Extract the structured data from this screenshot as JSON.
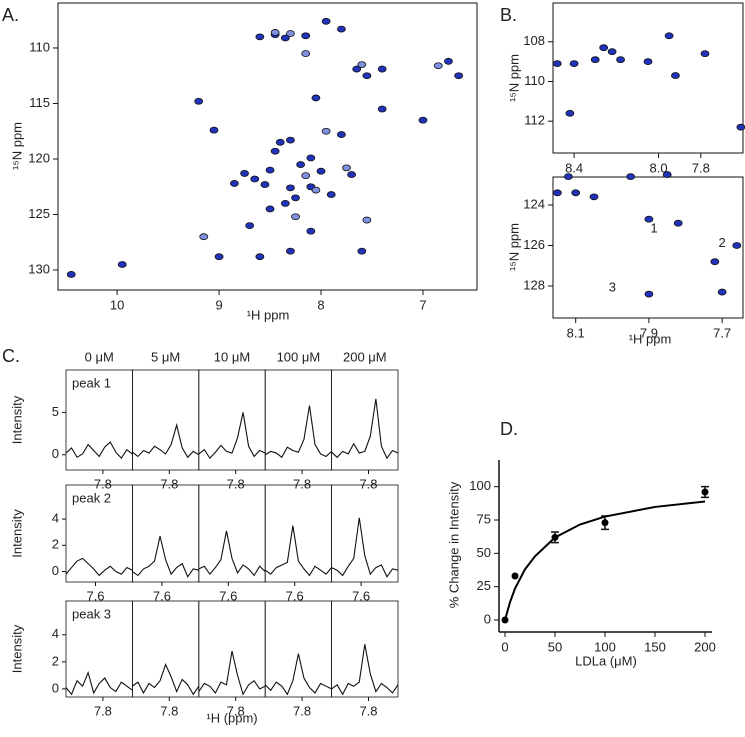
{
  "chart_data": [
    {
      "type": "scatter",
      "label": "A.",
      "xlabel": "¹H ppm",
      "ylabel": "¹⁵N ppm",
      "frame": true,
      "yreverse": true,
      "xlim": [
        10.58,
        6.47
      ],
      "ylim": [
        105.95,
        131.8
      ],
      "xticks": [
        10,
        9,
        8,
        7
      ],
      "yticks": [
        110,
        115,
        120,
        125,
        130
      ],
      "series": [
        {
          "color": "#2233bb",
          "x": [
            10.45,
            9.95,
            9.2,
            9.05,
            8.85,
            8.75,
            8.65,
            8.55,
            8.45,
            8.4,
            8.3,
            8.6,
            8.45,
            8.35,
            8.15,
            7.95,
            7.8,
            7.65,
            7.4,
            7.55,
            7.4,
            7.0,
            6.75,
            6.65,
            8.1,
            8.2,
            8.0,
            7.9,
            7.7,
            8.25,
            8.35,
            8.5,
            8.1,
            8.6,
            9.0,
            8.3,
            7.6,
            7.8,
            8.5,
            8.7,
            8.05,
            8.3,
            8.1
          ],
          "values": [
            130.4,
            129.5,
            114.8,
            117.4,
            122.2,
            121.3,
            121.8,
            122.3,
            119.3,
            118.5,
            118.3,
            109.0,
            108.8,
            109.1,
            108.9,
            107.6,
            108.3,
            111.9,
            111.9,
            112.5,
            115.5,
            116.5,
            111.2,
            112.5,
            119.9,
            120.5,
            121.1,
            123.2,
            121.4,
            123.5,
            124.0,
            124.5,
            126.5,
            128.8,
            128.8,
            128.3,
            128.3,
            117.8,
            121.0,
            126.0,
            114.5,
            122.6,
            122.5
          ]
        },
        {
          "color": "#8090e0",
          "x": [
            8.45,
            8.3,
            8.15,
            7.95,
            8.15,
            7.75,
            8.05,
            7.55,
            8.25,
            7.6,
            6.85,
            9.15
          ],
          "values": [
            108.6,
            108.7,
            110.5,
            117.5,
            121.5,
            120.8,
            122.8,
            125.5,
            125.2,
            111.5,
            111.6,
            127.0
          ]
        }
      ]
    },
    {
      "type": "scatter",
      "label": "B.",
      "ylabel": "¹⁵N ppm",
      "frame": true,
      "yreverse": true,
      "xlim": [
        8.5,
        7.6
      ],
      "ylim": [
        106.05,
        113.6
      ],
      "xticks": [
        8.4,
        {
          "value": 8.0,
          "label": "8.0"
        },
        7.8
      ],
      "yticks": [
        108,
        110,
        112
      ],
      "series": [
        {
          "color": "#2233bb",
          "x": [
            8.48,
            8.4,
            8.3,
            8.22,
            8.18,
            8.05,
            7.95,
            7.92,
            7.78,
            8.42,
            7.61,
            8.26
          ],
          "values": [
            109.1,
            109.1,
            108.9,
            108.5,
            108.9,
            109.0,
            107.7,
            109.7,
            108.6,
            111.6,
            112.3,
            108.3
          ]
        }
      ]
    },
    {
      "type": "scatter",
      "xlabel": "¹H ppm",
      "ylabel": "¹⁵N ppm",
      "frame": true,
      "yreverse": true,
      "xlim": [
        8.162,
        7.643
      ],
      "ylim": [
        122.62,
        129.58
      ],
      "xticks": [
        8.1,
        7.9,
        7.7
      ],
      "yticks": [
        124,
        126,
        128
      ],
      "annotations": [
        {
          "text": "1",
          "x": 7.886,
          "y": 125.2
        },
        {
          "text": "2",
          "x": 7.7,
          "y": 125.9
        },
        {
          "text": "3",
          "x": 8.0,
          "y": 128.1
        }
      ],
      "series": [
        {
          "color": "#2233bb",
          "x": [
            8.15,
            8.1,
            8.05,
            7.95,
            7.85,
            7.9,
            7.82,
            7.72,
            7.66,
            7.7,
            7.9,
            8.12
          ],
          "values": [
            123.4,
            123.4,
            123.6,
            122.6,
            122.5,
            124.7,
            124.9,
            126.8,
            126.0,
            128.3,
            128.4,
            122.6
          ]
        }
      ]
    },
    {
      "type": "line",
      "label": "C.",
      "ylabel": "Intensity",
      "xlabel": "¹H (ppm)",
      "column_titles": [
        "0 μM",
        "5 μM",
        "10 μM",
        "100 μM",
        "200 μM"
      ],
      "rows": [
        {
          "label": "peak 1",
          "xlim": [
            7.9,
            7.72
          ],
          "ylim": [
            -1.8,
            10
          ],
          "xticks": [
            7.8
          ],
          "yticks": [
            0,
            5
          ],
          "x": [
            7.9,
            7.885,
            7.87,
            7.855,
            7.84,
            7.825,
            7.81,
            7.795,
            7.78,
            7.765,
            7.75,
            7.735,
            7.72
          ],
          "traces": [
            {
              "values": [
                0.2,
                0.8,
                -0.3,
                0.1,
                1.2,
                0.5,
                -0.2,
                0.9,
                1.5,
                0.3,
                -0.4,
                0.6,
                0.1
              ]
            },
            {
              "values": [
                0.3,
                -0.2,
                0.5,
                0.2,
                1.0,
                0.6,
                0.1,
                1.2,
                3.5,
                0.8,
                -0.3,
                0.4,
                0.0
              ]
            },
            {
              "values": [
                0.1,
                0.6,
                -0.4,
                0.3,
                1.1,
                0.4,
                0.2,
                2.0,
                5.0,
                1.0,
                -0.2,
                0.5,
                0.2
              ]
            },
            {
              "values": [
                0.0,
                0.4,
                0.2,
                -0.3,
                0.9,
                0.5,
                0.3,
                1.8,
                5.8,
                1.2,
                0.1,
                -0.2,
                0.4
              ]
            },
            {
              "values": [
                0.3,
                -0.3,
                0.4,
                0.1,
                1.3,
                0.2,
                0.4,
                2.2,
                6.6,
                1.0,
                -0.4,
                0.5,
                0.2
              ]
            }
          ]
        },
        {
          "label": "peak 2",
          "xlim": [
            7.68,
            7.5
          ],
          "ylim": [
            -0.8,
            6.6
          ],
          "xticks": [
            7.6
          ],
          "yticks": [
            0,
            2,
            4
          ],
          "x": [
            7.68,
            7.665,
            7.65,
            7.635,
            7.62,
            7.605,
            7.59,
            7.575,
            7.56,
            7.545,
            7.53,
            7.515,
            7.5
          ],
          "traces": [
            {
              "values": [
                -0.2,
                0.3,
                0.8,
                1.0,
                0.6,
                0.2,
                -0.3,
                0.1,
                0.4,
                0.0,
                -0.2,
                0.3,
                0.1
              ]
            },
            {
              "values": [
                0.0,
                -0.3,
                0.2,
                0.4,
                0.8,
                2.7,
                0.9,
                -0.2,
                0.3,
                0.6,
                -0.4,
                0.2,
                0.1
              ]
            },
            {
              "values": [
                0.2,
                0.4,
                -0.2,
                0.3,
                0.9,
                3.1,
                1.0,
                -0.1,
                0.5,
                0.2,
                -0.3,
                0.4,
                0.0
              ]
            },
            {
              "values": [
                0.1,
                -0.2,
                0.3,
                0.5,
                0.7,
                3.5,
                0.8,
                0.2,
                -0.3,
                0.4,
                0.1,
                -0.2,
                0.3
              ]
            },
            {
              "values": [
                0.3,
                0.1,
                -0.3,
                0.4,
                1.0,
                4.1,
                1.2,
                -0.2,
                0.3,
                0.5,
                -0.4,
                0.2,
                0.1
              ]
            }
          ]
        },
        {
          "label": "peak 3",
          "xlim": [
            7.9,
            7.72
          ],
          "ylim": [
            -0.6,
            6.5
          ],
          "xticks": [
            7.8
          ],
          "yticks": [
            0,
            2,
            4
          ],
          "x": [
            7.9,
            7.885,
            7.87,
            7.855,
            7.84,
            7.825,
            7.81,
            7.795,
            7.78,
            7.765,
            7.75,
            7.735,
            7.72
          ],
          "traces": [
            {
              "values": [
                0.1,
                -0.4,
                0.6,
                0.2,
                1.2,
                -0.3,
                0.4,
                0.8,
                0.1,
                -0.2,
                0.5,
                0.2,
                -0.1
              ]
            },
            {
              "values": [
                0.2,
                0.5,
                -0.3,
                0.4,
                0.1,
                0.6,
                1.8,
                0.9,
                -0.2,
                0.7,
                0.3,
                -0.4,
                0.2
              ]
            },
            {
              "values": [
                -0.2,
                0.4,
                0.2,
                -0.3,
                0.5,
                0.3,
                2.8,
                1.0,
                -0.4,
                0.3,
                0.6,
                0.0,
                0.2
              ]
            },
            {
              "values": [
                0.3,
                -0.1,
                0.5,
                0.2,
                -0.4,
                0.6,
                2.6,
                0.8,
                0.1,
                -0.3,
                0.4,
                0.2,
                0.0
              ]
            },
            {
              "values": [
                0.0,
                0.3,
                -0.4,
                0.4,
                0.2,
                0.5,
                3.3,
                1.1,
                -0.2,
                0.4,
                0.1,
                -0.3,
                0.3
              ]
            }
          ]
        }
      ]
    },
    {
      "type": "scatter",
      "label": "D.",
      "xlabel": "LDLa (μM)",
      "ylabel": "% Change in Intensity",
      "xlim": [
        -6,
        207
      ],
      "ylim": [
        -9,
        120
      ],
      "xticks": [
        0,
        50,
        100,
        150,
        200
      ],
      "yticks": [
        0,
        25,
        50,
        75,
        100
      ],
      "series": [
        {
          "color": "#000000",
          "x": [
            0,
            10,
            50,
            100,
            200
          ],
          "values": [
            0,
            33,
            62,
            73,
            96
          ],
          "errors": [
            0,
            0,
            4,
            5,
            4
          ]
        },
        {
          "color": "#000000",
          "line": true,
          "x": [
            0,
            5,
            10,
            20,
            30,
            50,
            75,
            100,
            150,
            200
          ],
          "values": [
            0,
            13.3,
            23.6,
            38.0,
            47.8,
            61.9,
            71.6,
            77.6,
            84.8,
            88.9
          ]
        }
      ]
    }
  ]
}
